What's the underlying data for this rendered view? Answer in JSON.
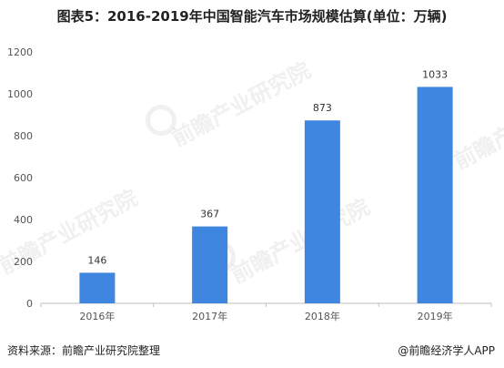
{
  "header": {
    "title": "图表5：2016-2019年中国智能汽车市场规模估算(单位：万辆)"
  },
  "footer": {
    "source": "资料来源：前瞻产业研究院整理",
    "credit": "@前瞻经济学人APP"
  },
  "watermark": {
    "text": "前瞻产业研究院"
  },
  "colors": {
    "bar": "#3f86e0",
    "axis": "#bfbfbf",
    "tick_text": "#555555",
    "label_text": "#333333"
  },
  "chart_data": {
    "type": "bar",
    "title": "图表5：2016-2019年中国智能汽车市场规模估算(单位：万辆)",
    "categories": [
      "2016年",
      "2017年",
      "2018年",
      "2019年"
    ],
    "values": [
      146,
      367,
      873,
      1033
    ],
    "ylim": [
      0,
      1200
    ],
    "yticks": [
      0,
      200,
      400,
      600,
      800,
      1000,
      1200
    ],
    "grid": false,
    "data_labels": true
  }
}
